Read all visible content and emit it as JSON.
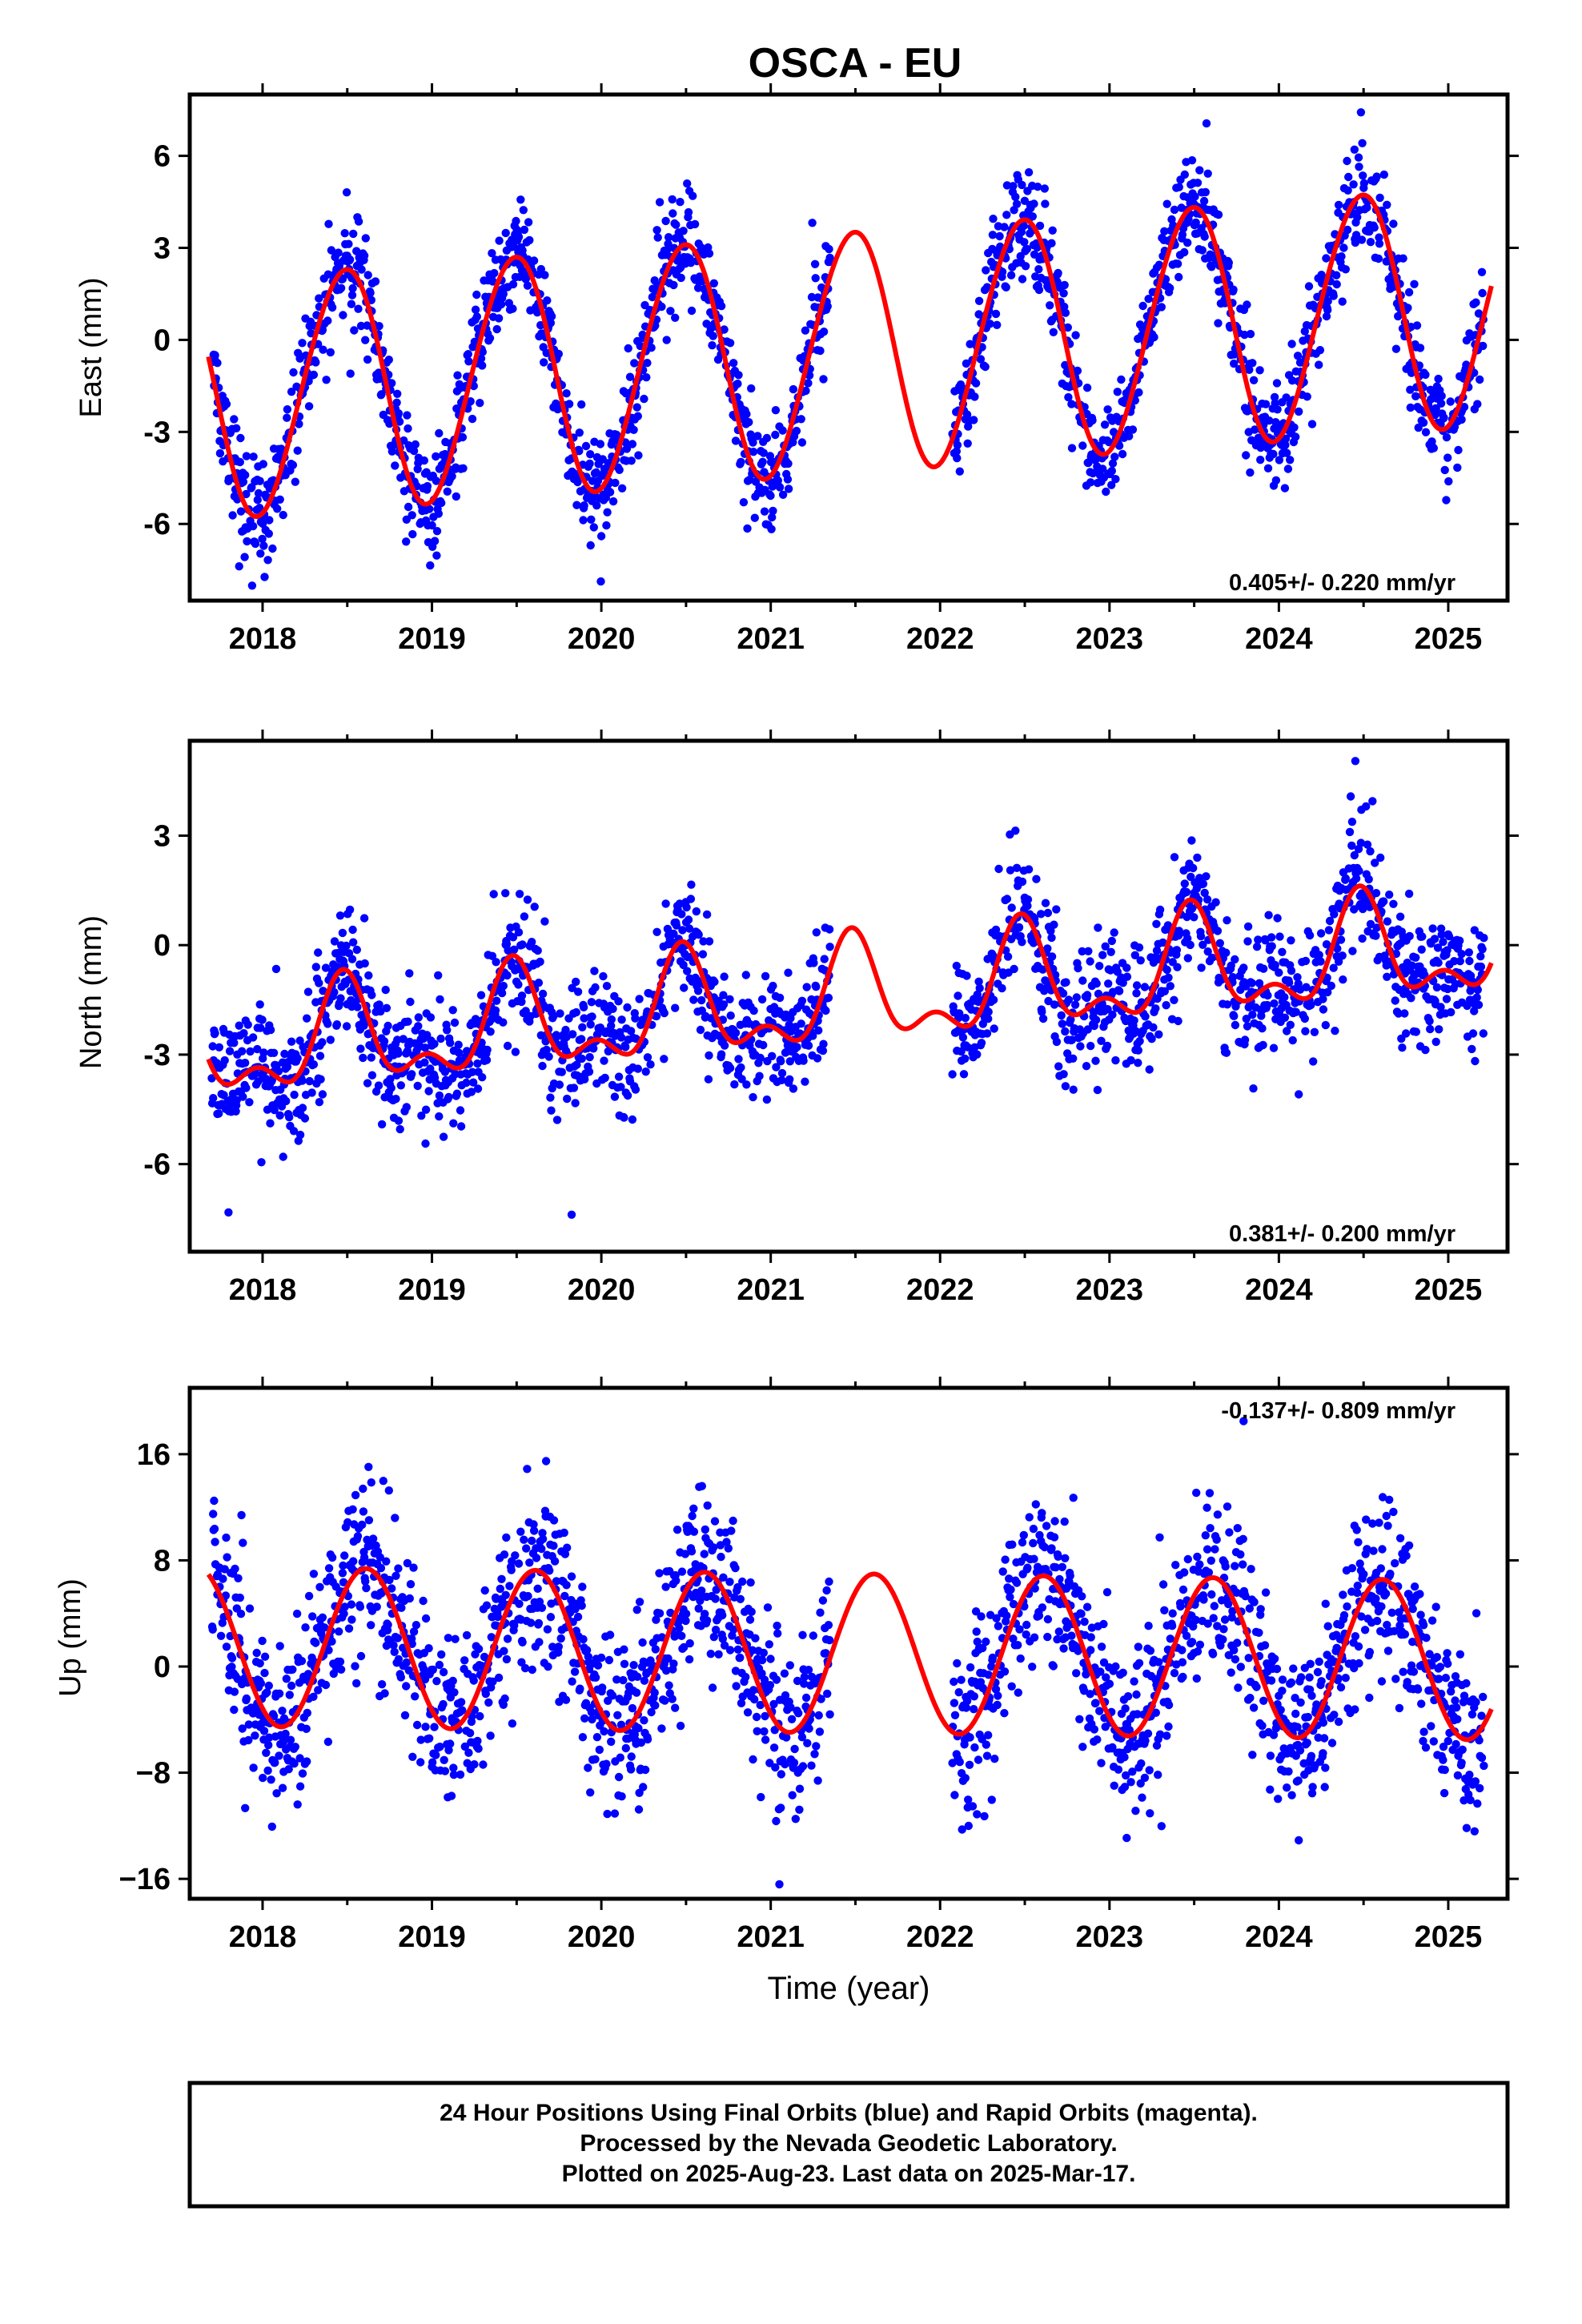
{
  "title": "OSCA - EU",
  "colors": {
    "data_points": "#0000ff",
    "model_curve": "#ff0000",
    "frame": "#000000"
  },
  "footer": {
    "line1": "24 Hour Positions Using Final Orbits (blue) and Rapid Orbits (magenta).",
    "line2": "Processed by the Nevada Geodetic Laboratory.",
    "line3": "Plotted on 2025-Aug-23. Last data on 2025-Mar-17."
  },
  "chart_data": [
    {
      "type": "scatter",
      "id": "east",
      "ylabel": "East (mm)",
      "xlabel": "",
      "rate_label": "0.405+/- 0.220 mm/yr",
      "rate_position": "bottom-right",
      "xlim": [
        2017.57,
        2025.35
      ],
      "ylim": [
        -8.5,
        8.0
      ],
      "xticks": [
        2018,
        2019,
        2020,
        2021,
        2022,
        2023,
        2024,
        2025
      ],
      "yticks": [
        6,
        3,
        0,
        -3,
        -6
      ],
      "ytick_labels": [
        "6",
        "3",
        "0",
        "-3",
        "-6"
      ],
      "data_range": [
        2017.7,
        2025.21
      ],
      "data_gap": [
        2021.35,
        2022.07
      ],
      "model": {
        "offset": -0.4,
        "rate": 0.405,
        "annual_amp": 3.9,
        "annual_phase": 2018.23,
        "semiannual_amp": 0.2,
        "semiannual_phase": 2018.0
      },
      "scatter_sigma": 0.9,
      "series": [
        {
          "name": "",
          "kind": "points",
          "color": "#0000ff"
        },
        {
          "name": "",
          "kind": "model-curve",
          "color": "#ff0000"
        }
      ]
    },
    {
      "type": "scatter",
      "id": "north",
      "ylabel": "North (mm)",
      "xlabel": "",
      "rate_label": "0.381+/- 0.200 mm/yr",
      "rate_position": "bottom-right",
      "xlim": [
        2017.57,
        2025.35
      ],
      "ylim": [
        -8.4,
        5.6
      ],
      "xticks": [
        2018,
        2019,
        2020,
        2021,
        2022,
        2023,
        2024,
        2025
      ],
      "yticks": [
        3,
        0,
        -3,
        -6
      ],
      "ytick_labels": [
        "3",
        "0",
        "-3",
        "-6"
      ],
      "data_range": [
        2017.7,
        2025.21
      ],
      "data_gap": [
        2021.35,
        2022.07
      ],
      "model": {
        "offset": -1.5,
        "rate": 0.381,
        "annual_amp": 1.25,
        "annual_phase": 2018.23,
        "semiannual_amp": 0.7,
        "semiannual_phase": 2018.35
      },
      "scatter_sigma": 0.85,
      "series": [
        {
          "name": "",
          "kind": "points",
          "color": "#0000ff"
        },
        {
          "name": "",
          "kind": "model-curve",
          "color": "#ff0000"
        }
      ]
    },
    {
      "type": "scatter",
      "id": "up",
      "ylabel": "Up (mm)",
      "xlabel": "Time (year)",
      "rate_label": "-0.137+/- 0.809 mm/yr",
      "rate_position": "top-right",
      "xlim": [
        2017.57,
        2025.35
      ],
      "ylim": [
        -17.5,
        21.0
      ],
      "xticks": [
        2018,
        2019,
        2020,
        2021,
        2022,
        2023,
        2024,
        2025
      ],
      "yticks": [
        16,
        8,
        0,
        -8,
        -16
      ],
      "ytick_labels": [
        "16",
        "8",
        "0",
        "−8",
        "−16"
      ],
      "data_range": [
        2017.7,
        2025.21
      ],
      "data_gap": [
        2021.35,
        2022.07
      ],
      "model": {
        "offset": 1.0,
        "rate": -0.137,
        "annual_amp": 6.0,
        "annual_phase": 2018.36,
        "semiannual_amp": 0.0,
        "semiannual_phase": 2018.0
      },
      "scatter_sigma": 3.2,
      "series": [
        {
          "name": "",
          "kind": "points",
          "color": "#0000ff"
        },
        {
          "name": "",
          "kind": "model-curve",
          "color": "#ff0000"
        }
      ]
    }
  ]
}
